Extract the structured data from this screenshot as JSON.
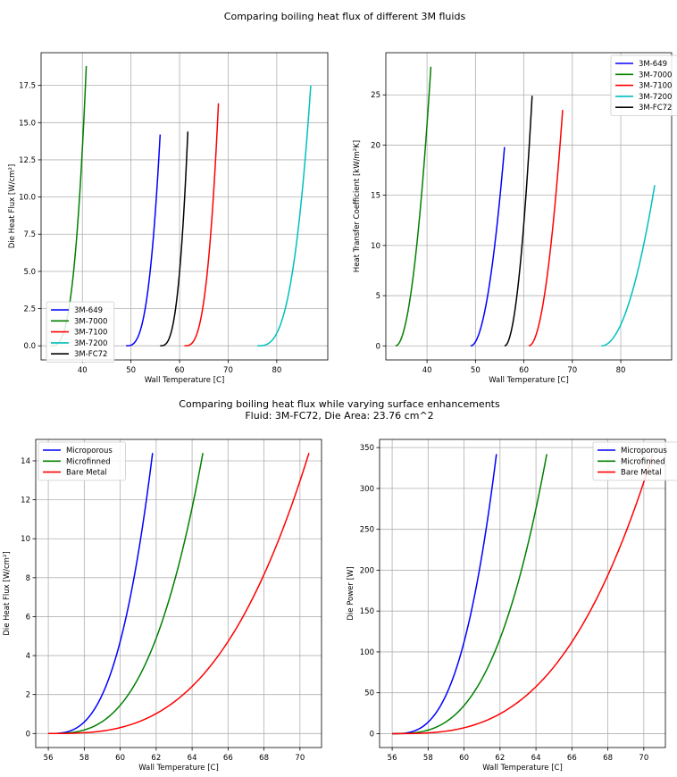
{
  "figure": {
    "top_title": "Comparing boiling heat flux of different 3M fluids",
    "bottom_title_line1": "Comparing boiling heat flux while varying surface enhancements",
    "bottom_title_line2": "Fluid: 3M-FC72, Die Area: 23.76 cm^2"
  },
  "colors": {
    "3M-649": "#0000ff",
    "3M-7000": "#008000",
    "3M-7100": "#ff0000",
    "3M-7200": "#00bfbf",
    "3M-FC72": "#000000",
    "Microporous": "#0000ff",
    "Microfinned": "#008000",
    "Bare Metal": "#ff0000"
  },
  "chart_data": [
    {
      "id": "tl",
      "type": "line",
      "xlabel": "Wall Temperature [C]",
      "ylabel": "Die Heat Flux [W/cm²]",
      "xlim": [
        31.5,
        90.5
      ],
      "ylim": [
        -0.95,
        19.7
      ],
      "xticks": [
        40,
        50,
        60,
        70,
        80
      ],
      "yticks": [
        0,
        2.5,
        5,
        7.5,
        10,
        12.5,
        15,
        17.5
      ],
      "ytick_labels": [
        "0.0",
        "2.5",
        "5.0",
        "7.5",
        "10.0",
        "12.5",
        "15.0",
        "17.5"
      ],
      "grid": true,
      "legend": "lower-left",
      "series": [
        {
          "name": "3M-649",
          "t0": 49.0,
          "t1": 56.0,
          "ymax": 14.2,
          "p": 3
        },
        {
          "name": "3M-7000",
          "t0": 33.5,
          "t1": 40.8,
          "ymax": 18.8,
          "p": 3
        },
        {
          "name": "3M-7100",
          "t0": 61.0,
          "t1": 68.0,
          "ymax": 16.3,
          "p": 3
        },
        {
          "name": "3M-7200",
          "t0": 76.0,
          "t1": 87.0,
          "ymax": 17.5,
          "p": 3
        },
        {
          "name": "3M-FC72",
          "t0": 56.0,
          "t1": 61.7,
          "ymax": 14.4,
          "p": 3
        }
      ]
    },
    {
      "id": "tr",
      "type": "line",
      "xlabel": "Wall Temperature [C]",
      "ylabel": "Heat Transfer Coefficient [kW/m²K]",
      "xlim": [
        31.5,
        90.5
      ],
      "ylim": [
        -1.4,
        29.2
      ],
      "xticks": [
        40,
        50,
        60,
        70,
        80
      ],
      "yticks": [
        0,
        5,
        10,
        15,
        20,
        25
      ],
      "ytick_labels": [
        "0",
        "5",
        "10",
        "15",
        "20",
        "25"
      ],
      "grid": true,
      "legend": "upper-right",
      "series": [
        {
          "name": "3M-649",
          "t0": 49.0,
          "t1": 56.0,
          "ymax": 19.8,
          "p": 2
        },
        {
          "name": "3M-7000",
          "t0": 33.5,
          "t1": 40.8,
          "ymax": 27.8,
          "p": 2
        },
        {
          "name": "3M-7100",
          "t0": 61.0,
          "t1": 68.0,
          "ymax": 23.5,
          "p": 2
        },
        {
          "name": "3M-7200",
          "t0": 76.0,
          "t1": 87.0,
          "ymax": 16.0,
          "p": 2
        },
        {
          "name": "3M-FC72",
          "t0": 56.0,
          "t1": 61.7,
          "ymax": 24.9,
          "p": 2
        }
      ]
    },
    {
      "id": "bl",
      "type": "line",
      "xlabel": "Wall Temperature [C]",
      "ylabel": "Die Heat Flux [W/cm²]",
      "xlim": [
        55.3,
        71.2
      ],
      "ylim": [
        -0.72,
        15.1
      ],
      "xticks": [
        56,
        58,
        60,
        62,
        64,
        66,
        68,
        70
      ],
      "yticks": [
        0,
        2,
        4,
        6,
        8,
        10,
        12,
        14
      ],
      "ytick_labels": [
        "0",
        "2",
        "4",
        "6",
        "8",
        "10",
        "12",
        "14"
      ],
      "grid": true,
      "legend": "upper-left",
      "series": [
        {
          "name": "Microporous",
          "t0": 56.0,
          "t1": 61.8,
          "ymax": 14.4,
          "p": 3
        },
        {
          "name": "Microfinned",
          "t0": 56.0,
          "t1": 64.6,
          "ymax": 14.4,
          "p": 3
        },
        {
          "name": "Bare Metal",
          "t0": 56.0,
          "t1": 70.5,
          "ymax": 14.4,
          "p": 3
        }
      ]
    },
    {
      "id": "br",
      "type": "line",
      "xlabel": "Wall Temperature [C]",
      "ylabel": "Die Power [W]",
      "xlim": [
        55.3,
        71.2
      ],
      "ylim": [
        -17,
        360
      ],
      "xticks": [
        56,
        58,
        60,
        62,
        64,
        66,
        68,
        70
      ],
      "yticks": [
        0,
        50,
        100,
        150,
        200,
        250,
        300,
        350
      ],
      "ytick_labels": [
        "0",
        "50",
        "100",
        "150",
        "200",
        "250",
        "300",
        "350"
      ],
      "grid": true,
      "legend": "upper-right",
      "series": [
        {
          "name": "Microporous",
          "t0": 56.0,
          "t1": 61.8,
          "ymax": 342,
          "p": 3
        },
        {
          "name": "Microfinned",
          "t0": 56.0,
          "t1": 64.6,
          "ymax": 342,
          "p": 3
        },
        {
          "name": "Bare Metal",
          "t0": 56.0,
          "t1": 70.5,
          "ymax": 342,
          "p": 3
        }
      ]
    }
  ]
}
